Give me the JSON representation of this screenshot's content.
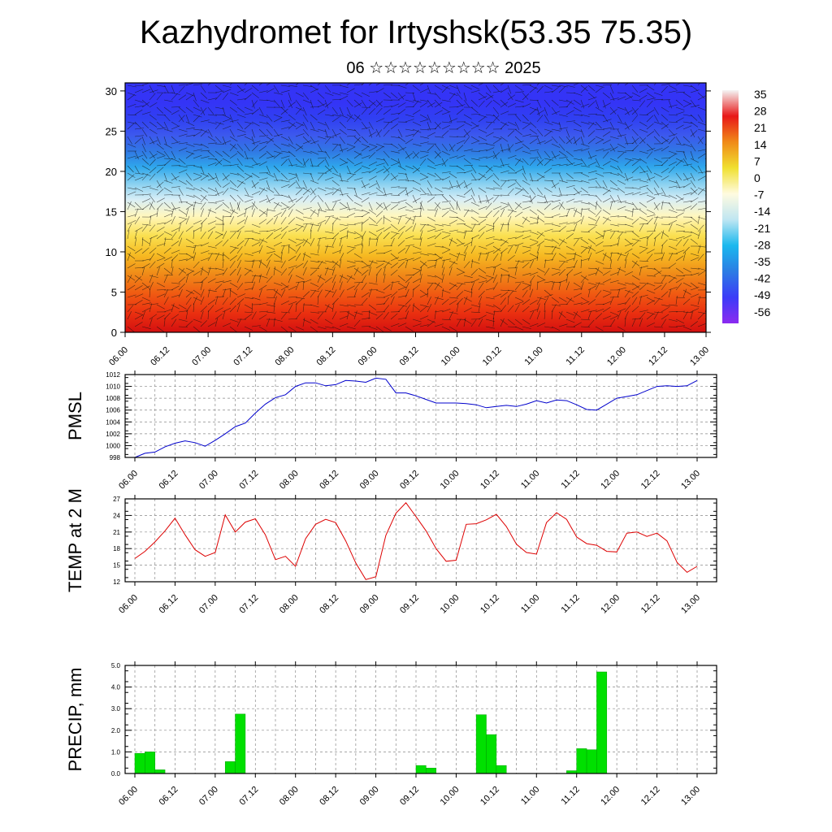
{
  "header": {
    "title": "Kazhydromet for Irtyshsk(53.35 75.35)",
    "subtitle": "06 ☆☆☆☆☆☆☆☆☆ 2025"
  },
  "x_ticks": [
    "06.00",
    "06.12",
    "07.00",
    "07.12",
    "08.00",
    "08.12",
    "09.00",
    "09.12",
    "10.00",
    "10.12",
    "11.00",
    "11.12",
    "12.00",
    "12.12",
    "13.00"
  ],
  "chart_data": [
    {
      "type": "heatmap",
      "name": "Temperature and wind cross-section",
      "yticks": [
        0,
        5,
        10,
        15,
        20,
        25,
        30
      ],
      "ylim": [
        0,
        31
      ],
      "colorbar_labels": [
        "35",
        "28",
        "21",
        "14",
        "7",
        "0",
        "-7",
        "-14",
        "-21",
        "-28",
        "-35",
        "-42",
        "-49",
        "-56"
      ],
      "colorbar_colors": [
        "#f4f4f4",
        "#e81818",
        "#f08a18",
        "#f0e030",
        "#fffbe0",
        "#bfe6f2",
        "#1ab8ee",
        "#2c7ce4",
        "#3c3cf8",
        "#8c2af0"
      ],
      "levels_colors": [
        "#d41010",
        "#ea3010",
        "#f05a12",
        "#f08a18",
        "#f6ba22",
        "#fae050",
        "#fff7c0",
        "#d8eef6",
        "#88d0f0",
        "#2fa8ec",
        "#3078e4",
        "#3c58ee",
        "#3040f2",
        "#3434f6"
      ],
      "level_heights": [
        0,
        2.4,
        4.8,
        7.2,
        9.6,
        12,
        14.5,
        16.5,
        18.5,
        20.5,
        22.5,
        24.5,
        26.5,
        28.5,
        31
      ]
    },
    {
      "type": "line",
      "ylabel": "PMSL",
      "yticks": [
        998,
        1000,
        1002,
        1004,
        1006,
        1008,
        1010,
        1012
      ],
      "ylim": [
        998,
        1012
      ],
      "color": "#0000cc",
      "x": [
        0,
        1,
        2,
        3,
        4,
        5,
        6,
        7,
        8,
        9,
        10,
        11,
        12,
        13,
        14,
        15,
        16,
        17,
        18,
        19,
        20,
        21,
        22,
        23,
        24,
        25,
        26,
        27,
        28,
        29,
        30,
        31,
        32,
        33,
        34,
        35,
        36,
        37,
        38,
        39,
        40,
        41,
        42,
        43,
        44,
        45,
        46,
        47,
        48,
        49,
        50,
        51,
        52,
        53,
        54,
        55,
        56
      ],
      "values": [
        998.0,
        998.7,
        998.9,
        999.8,
        1000.4,
        1000.8,
        1000.5,
        999.9,
        1000.9,
        1002.0,
        1003.2,
        1003.8,
        1005.5,
        1007.0,
        1008.1,
        1008.6,
        1010.0,
        1010.6,
        1010.6,
        1010.1,
        1010.3,
        1011.0,
        1010.9,
        1010.7,
        1011.4,
        1011.2,
        1008.9,
        1008.9,
        1008.4,
        1007.8,
        1007.2,
        1007.2,
        1007.2,
        1007.1,
        1006.9,
        1006.4,
        1006.6,
        1006.8,
        1006.6,
        1007.0,
        1007.6,
        1007.2,
        1007.7,
        1007.6,
        1006.9,
        1006.1,
        1006.0,
        1007.0,
        1008.0,
        1008.3,
        1008.6,
        1009.3,
        1010.0,
        1010.1,
        1010.0,
        1010.1,
        1011.0
      ]
    },
    {
      "type": "line",
      "ylabel": "TEMP at 2 M",
      "yticks": [
        12,
        15,
        18,
        21,
        24,
        27
      ],
      "ylim": [
        12,
        27
      ],
      "color": "#dd0000",
      "x": [
        0,
        1,
        2,
        3,
        4,
        5,
        6,
        7,
        8,
        9,
        10,
        11,
        12,
        13,
        14,
        15,
        16,
        17,
        18,
        19,
        20,
        21,
        22,
        23,
        24,
        25,
        26,
        27,
        28,
        29,
        30,
        31,
        32,
        33,
        34,
        35,
        36,
        37,
        38,
        39,
        40,
        41,
        42,
        43,
        44,
        45,
        46,
        47,
        48,
        49,
        50,
        51,
        52,
        53,
        54,
        55,
        56
      ],
      "values": [
        16.2,
        17.5,
        19.2,
        21.2,
        23.5,
        20.5,
        17.8,
        16.6,
        17.3,
        24.1,
        21.0,
        22.8,
        23.4,
        20.5,
        16.0,
        16.6,
        14.8,
        19.8,
        22.4,
        23.3,
        22.7,
        19.4,
        15.4,
        12.4,
        12.9,
        20.4,
        24.4,
        26.3,
        23.8,
        21.2,
        18.0,
        15.7,
        15.9,
        22.4,
        22.5,
        23.2,
        24.2,
        22.0,
        18.8,
        17.3,
        17.0,
        22.7,
        24.5,
        23.3,
        20.1,
        18.9,
        18.6,
        17.5,
        17.4,
        20.8,
        21.0,
        20.2,
        20.8,
        19.4,
        15.5,
        13.7,
        14.8
      ]
    },
    {
      "type": "bar",
      "ylabel": "PRECIP, mm",
      "yticks": [
        "0.0",
        "1.0",
        "2.0",
        "3.0",
        "4.0",
        "5.0"
      ],
      "ylim": [
        0,
        5
      ],
      "color": "#00e000",
      "x": [
        0,
        1,
        2,
        9,
        10,
        28,
        29,
        34,
        35,
        36,
        43,
        44,
        45,
        46
      ],
      "values": [
        0.93,
        1.0,
        0.17,
        0.55,
        2.75,
        0.37,
        0.25,
        2.72,
        1.8,
        0.37,
        0.13,
        1.15,
        1.1,
        4.7
      ]
    }
  ]
}
